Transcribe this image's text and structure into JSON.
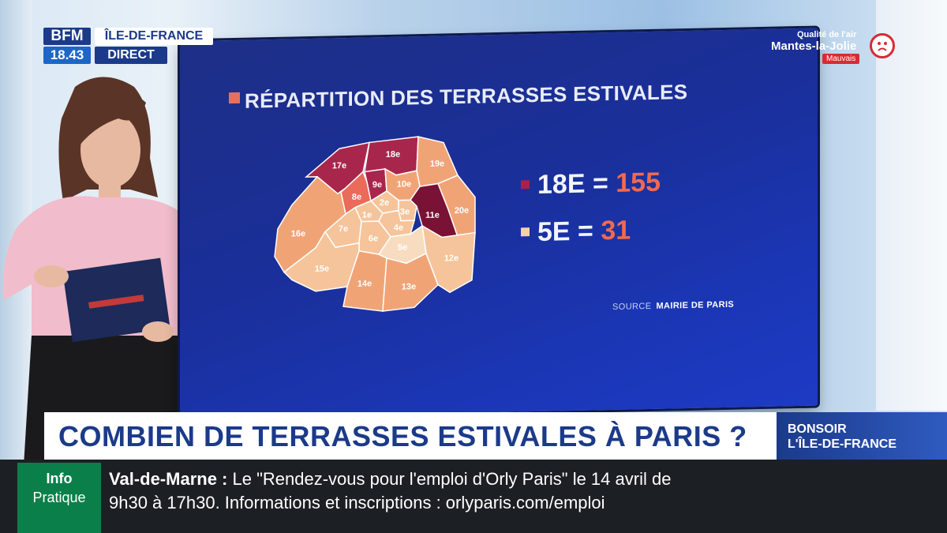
{
  "channel": {
    "logo": "BFM",
    "time": "18.43",
    "region": "ÎLE-DE-FRANCE",
    "live": "DIRECT"
  },
  "air_quality": {
    "label": "Qualité de l'air",
    "city": "Mantes-la-Jolie",
    "status": "Mauvais",
    "status_color": "#d92a34"
  },
  "screen": {
    "title": "RÉPARTITION DES TERRASSES ESTIVALES",
    "stats": [
      {
        "label": "18E = ",
        "value": "155",
        "color": "#a3234a"
      },
      {
        "label": "5E = ",
        "value": "31",
        "color": "#f3d2b0"
      }
    ],
    "source_label": "SOURCE",
    "source_value": "MAIRIE DE PARIS"
  },
  "map": {
    "arrondissements": [
      {
        "label": "1e",
        "level": 1
      },
      {
        "label": "2e",
        "level": 1
      },
      {
        "label": "3e",
        "level": 1
      },
      {
        "label": "4e",
        "level": 1
      },
      {
        "label": "5e",
        "level": 0
      },
      {
        "label": "6e",
        "level": 1
      },
      {
        "label": "7e",
        "level": 1
      },
      {
        "label": "8e",
        "level": 3
      },
      {
        "label": "9e",
        "level": 4
      },
      {
        "label": "10e",
        "level": 2
      },
      {
        "label": "11e",
        "level": 5
      },
      {
        "label": "12e",
        "level": 1
      },
      {
        "label": "13e",
        "level": 2
      },
      {
        "label": "14e",
        "level": 2
      },
      {
        "label": "15e",
        "level": 1
      },
      {
        "label": "16e",
        "level": 2
      },
      {
        "label": "17e",
        "level": 4
      },
      {
        "label": "18e",
        "level": 4
      },
      {
        "label": "19e",
        "level": 2
      },
      {
        "label": "20e",
        "level": 2
      }
    ],
    "palette": [
      "#f7dcc0",
      "#f6c49a",
      "#f0a476",
      "#ea6b5a",
      "#a8264c",
      "#7a1236"
    ]
  },
  "headline": "COMBIEN DE TERRASSES ESTIVALES À PARIS ?",
  "show": {
    "line1": "BONSOIR",
    "line2": "L'ÎLE-DE-FRANCE"
  },
  "ticker": {
    "badge_line1": "Info",
    "badge_line2": "Pratique",
    "place": "Val-de-Marne :",
    "line1": " Le \"Rendez-vous pour l'emploi d'Orly Paris\" le 14 avril de",
    "line2": "9h30 à 17h30. Informations et inscriptions : orlyparis.com/emploi"
  }
}
